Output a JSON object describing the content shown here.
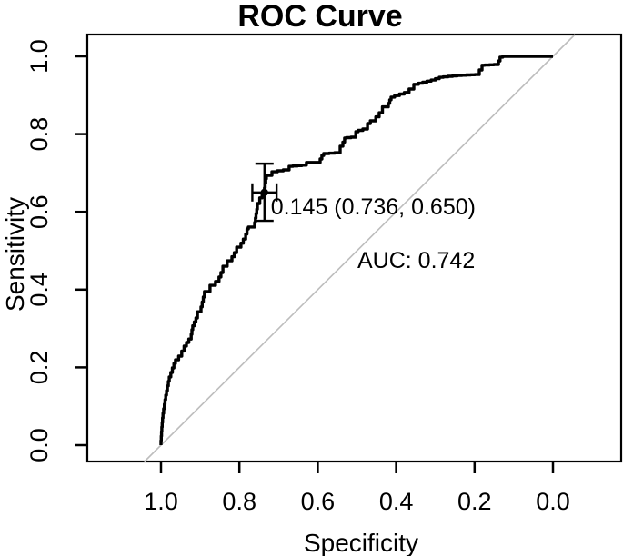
{
  "title": "ROC Curve",
  "axes": {
    "x": {
      "label": "Specificity",
      "tick_labels": [
        "1.0",
        "0.8",
        "0.6",
        "0.4",
        "0.2",
        "0.0"
      ],
      "tick_values": [
        1.0,
        0.8,
        0.6,
        0.4,
        0.2,
        0.0
      ],
      "reversed": true
    },
    "y": {
      "label": "Sensitivity",
      "tick_labels": [
        "0.0",
        "0.2",
        "0.4",
        "0.6",
        "0.8",
        "1.0"
      ],
      "tick_values": [
        0.0,
        0.2,
        0.4,
        0.6,
        0.8,
        1.0
      ]
    }
  },
  "annotations": {
    "threshold_label": "0.145 (0.736, 0.650)",
    "auc_label": "AUC: 0.742"
  },
  "colors": {
    "curve": "#000000",
    "diagonal": "#bdbdbd",
    "text": "#000000",
    "background": "#ffffff"
  },
  "chart_data": {
    "type": "line",
    "title": "ROC Curve",
    "xlabel": "Specificity",
    "ylabel": "Sensitivity",
    "xlim": [
      1.0,
      0.0
    ],
    "ylim": [
      0.0,
      1.0
    ],
    "grid": false,
    "diagonal_reference": true,
    "auc": 0.742,
    "best_threshold": {
      "threshold": 0.145,
      "specificity": 0.736,
      "sensitivity": 0.65,
      "sensitivity_ci": [
        0.577,
        0.724
      ],
      "specificity_ci": [
        0.705,
        0.767
      ]
    },
    "series": [
      {
        "name": "ROC curve",
        "style": "step",
        "points": [
          [
            1.0,
            0.0
          ],
          [
            0.998,
            0.035
          ],
          [
            0.995,
            0.07
          ],
          [
            0.988,
            0.117
          ],
          [
            0.979,
            0.164
          ],
          [
            0.963,
            0.21
          ],
          [
            0.947,
            0.229
          ],
          [
            0.935,
            0.255
          ],
          [
            0.923,
            0.273
          ],
          [
            0.919,
            0.297
          ],
          [
            0.907,
            0.327
          ],
          [
            0.898,
            0.343
          ],
          [
            0.889,
            0.381
          ],
          [
            0.875,
            0.395
          ],
          [
            0.861,
            0.411
          ],
          [
            0.852,
            0.421
          ],
          [
            0.842,
            0.444
          ],
          [
            0.831,
            0.46
          ],
          [
            0.819,
            0.474
          ],
          [
            0.807,
            0.495
          ],
          [
            0.796,
            0.509
          ],
          [
            0.784,
            0.53
          ],
          [
            0.777,
            0.556
          ],
          [
            0.761,
            0.561
          ],
          [
            0.754,
            0.607
          ],
          [
            0.742,
            0.636
          ],
          [
            0.736,
            0.65
          ],
          [
            0.731,
            0.685
          ],
          [
            0.703,
            0.703
          ],
          [
            0.673,
            0.708
          ],
          [
            0.664,
            0.717
          ],
          [
            0.629,
            0.72
          ],
          [
            0.62,
            0.727
          ],
          [
            0.594,
            0.727
          ],
          [
            0.585,
            0.745
          ],
          [
            0.571,
            0.75
          ],
          [
            0.543,
            0.752
          ],
          [
            0.536,
            0.769
          ],
          [
            0.527,
            0.79
          ],
          [
            0.503,
            0.792
          ],
          [
            0.497,
            0.806
          ],
          [
            0.473,
            0.813
          ],
          [
            0.466,
            0.827
          ],
          [
            0.452,
            0.834
          ],
          [
            0.435,
            0.855
          ],
          [
            0.42,
            0.87
          ],
          [
            0.413,
            0.888
          ],
          [
            0.404,
            0.895
          ],
          [
            0.367,
            0.907
          ],
          [
            0.355,
            0.916
          ],
          [
            0.343,
            0.928
          ],
          [
            0.3,
            0.939
          ],
          [
            0.28,
            0.946
          ],
          [
            0.232,
            0.951
          ],
          [
            0.188,
            0.953
          ],
          [
            0.181,
            0.965
          ],
          [
            0.174,
            0.977
          ],
          [
            0.139,
            0.979
          ],
          [
            0.135,
            0.988
          ],
          [
            0.128,
            0.998
          ],
          [
            0.115,
            1.0
          ],
          [
            0.0,
            1.0
          ]
        ]
      }
    ]
  }
}
